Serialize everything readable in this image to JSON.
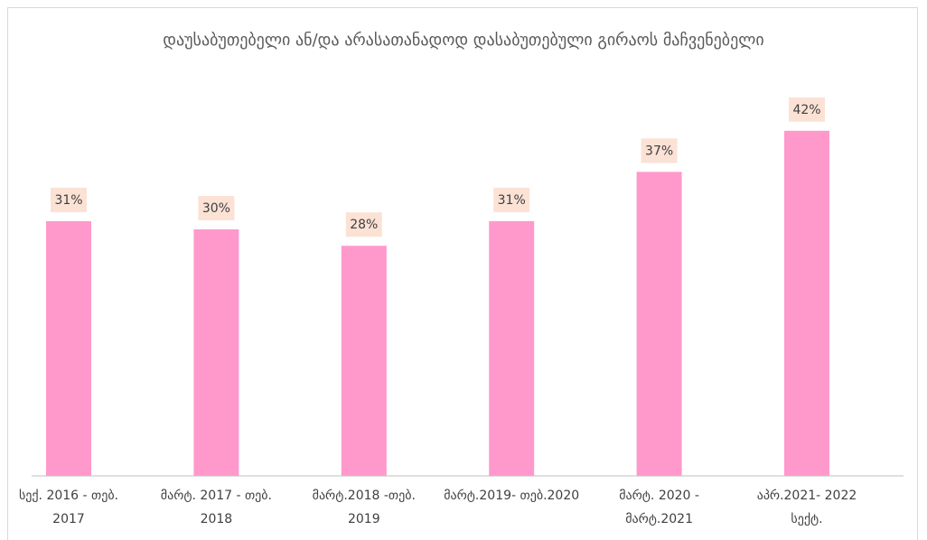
{
  "chart_data": {
    "type": "bar",
    "title": "დაუსაბუთებელი ან/და არასათანადოდ დასაბუთებული გირაოს მაჩვენებელი",
    "categories": [
      "სექ. 2016 - თებ. 2017",
      "მარტ. 2017 - თებ. 2018",
      "მარტ.2018 -თებ. 2019",
      "მარტ.2019- თებ.2020",
      "მარტ. 2020 - მარტ.2021",
      "აპრ.2021- 2022 სექტ."
    ],
    "values": [
      31,
      30,
      28,
      31,
      37,
      42
    ],
    "value_labels": [
      "31%",
      "30%",
      "28%",
      "31%",
      "37%",
      "42%"
    ],
    "color": "#ff99cc"
  }
}
